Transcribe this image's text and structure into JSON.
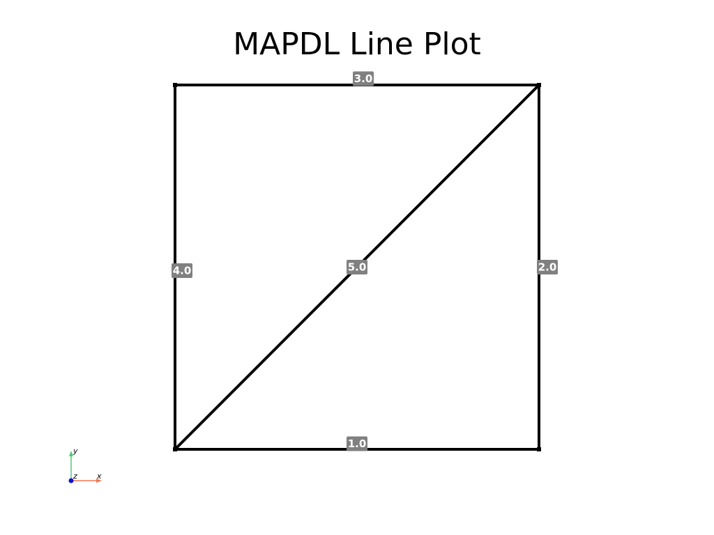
{
  "title": "MAPDL Line Plot",
  "colors": {
    "line": "#000000",
    "label_bg": "#808080",
    "label_text": "#ffffff",
    "axis_x": "#f07850",
    "axis_y": "#50c878",
    "axis_z": "#1010d0"
  },
  "lines": [
    {
      "id": "1.0",
      "from": [
        0,
        0
      ],
      "to": [
        1,
        0
      ],
      "label": "1.0"
    },
    {
      "id": "2.0",
      "from": [
        1,
        0
      ],
      "to": [
        1,
        1
      ],
      "label": "2.0"
    },
    {
      "id": "3.0",
      "from": [
        1,
        1
      ],
      "to": [
        0,
        1
      ],
      "label": "3.0"
    },
    {
      "id": "4.0",
      "from": [
        0,
        1
      ],
      "to": [
        0,
        0
      ],
      "label": "4.0"
    },
    {
      "id": "5.0",
      "from": [
        0,
        0
      ],
      "to": [
        1,
        1
      ],
      "label": "5.0"
    }
  ],
  "axes_widget": {
    "x_label": "x",
    "y_label": "y",
    "z_label": "z"
  }
}
